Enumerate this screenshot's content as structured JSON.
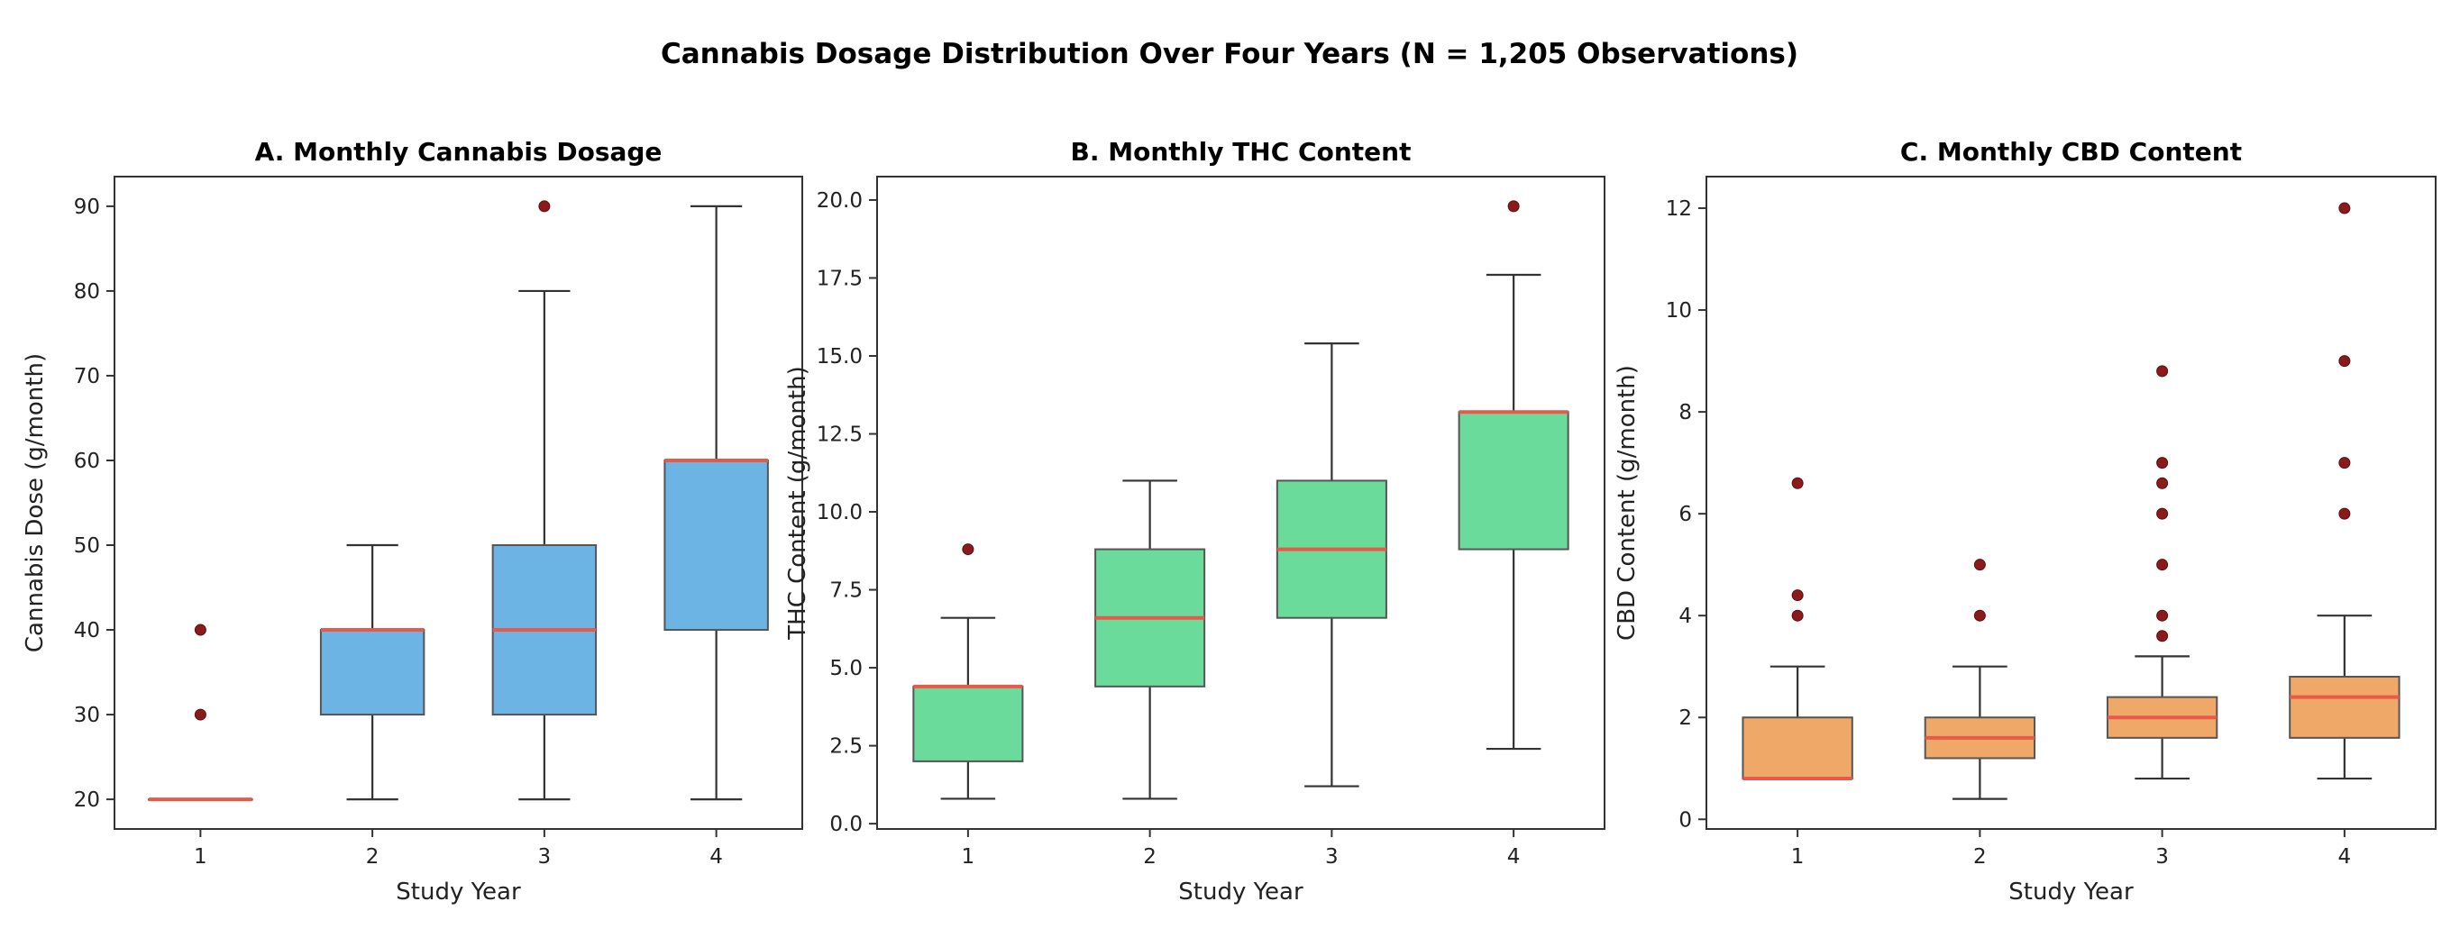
{
  "figure": {
    "title": "Cannabis Dosage Distribution Over Four Years (N = 1,205 Observations)"
  },
  "chart_data": [
    {
      "type": "box",
      "title": "A. Monthly Cannabis Dosage",
      "xlabel": "Study Year",
      "ylabel": "Cannabis Dose (g/month)",
      "categories": [
        "1",
        "2",
        "3",
        "4"
      ],
      "ylim": [
        16.5,
        93.5
      ],
      "yticks": [
        20,
        30,
        40,
        50,
        60,
        70,
        80,
        90
      ],
      "box_color": "#6cb4e4",
      "median_color": "#e8594a",
      "outlier_color": "#8b1a1a",
      "boxes": [
        {
          "min": 20,
          "q1": 20,
          "median": 20,
          "q3": 20,
          "max": 20,
          "outliers": [
            30,
            40
          ]
        },
        {
          "min": 20,
          "q1": 30,
          "median": 40,
          "q3": 40,
          "max": 50,
          "outliers": []
        },
        {
          "min": 20,
          "q1": 30,
          "median": 40,
          "q3": 50,
          "max": 80,
          "outliers": [
            90
          ]
        },
        {
          "min": 20,
          "q1": 40,
          "median": 60,
          "q3": 60,
          "max": 90,
          "outliers": []
        }
      ]
    },
    {
      "type": "box",
      "title": "B. Monthly THC Content",
      "xlabel": "Study Year",
      "ylabel": "THC Content (g/month)",
      "categories": [
        "1",
        "2",
        "3",
        "4"
      ],
      "ylim": [
        -0.17,
        20.75
      ],
      "yticks": [
        0.0,
        2.5,
        5.0,
        7.5,
        10.0,
        12.5,
        15.0,
        17.5,
        20.0
      ],
      "ytick_labels": [
        "0.0",
        "2.5",
        "5.0",
        "7.5",
        "10.0",
        "12.5",
        "15.0",
        "17.5",
        "20.0"
      ],
      "box_color": "#6adb9a",
      "median_color": "#e8594a",
      "outlier_color": "#8b1a1a",
      "boxes": [
        {
          "min": 0.8,
          "q1": 2.0,
          "median": 4.4,
          "q3": 4.4,
          "max": 6.6,
          "outliers": [
            8.8
          ]
        },
        {
          "min": 0.8,
          "q1": 4.4,
          "median": 6.6,
          "q3": 8.8,
          "max": 11.0,
          "outliers": []
        },
        {
          "min": 1.2,
          "q1": 6.6,
          "median": 8.8,
          "q3": 11.0,
          "max": 15.4,
          "outliers": []
        },
        {
          "min": 2.4,
          "q1": 8.8,
          "median": 13.2,
          "q3": 13.2,
          "max": 17.6,
          "outliers": [
            19.8
          ]
        }
      ]
    },
    {
      "type": "box",
      "title": "C. Monthly CBD Content",
      "xlabel": "Study Year",
      "ylabel": "CBD Content (g/month)",
      "categories": [
        "1",
        "2",
        "3",
        "4"
      ],
      "ylim": [
        -0.19,
        12.62
      ],
      "yticks": [
        0,
        2,
        4,
        6,
        8,
        10,
        12
      ],
      "box_color": "#f0a868",
      "median_color": "#e8594a",
      "outlier_color": "#8b1a1a",
      "boxes": [
        {
          "min": 0.8,
          "q1": 0.8,
          "median": 0.8,
          "q3": 2.0,
          "max": 3.0,
          "outliers": [
            4.0,
            4.4,
            6.6
          ]
        },
        {
          "min": 0.4,
          "q1": 1.2,
          "median": 1.6,
          "q3": 2.0,
          "max": 3.0,
          "outliers": [
            4.0,
            5.0
          ]
        },
        {
          "min": 0.8,
          "q1": 1.6,
          "median": 2.0,
          "q3": 2.4,
          "max": 3.2,
          "outliers": [
            3.6,
            4.0,
            5.0,
            6.0,
            6.6,
            7.0,
            8.8
          ]
        },
        {
          "min": 0.8,
          "q1": 1.6,
          "median": 2.4,
          "q3": 2.8,
          "max": 4.0,
          "outliers": [
            6.0,
            7.0,
            9.0,
            12.0
          ]
        }
      ]
    }
  ]
}
